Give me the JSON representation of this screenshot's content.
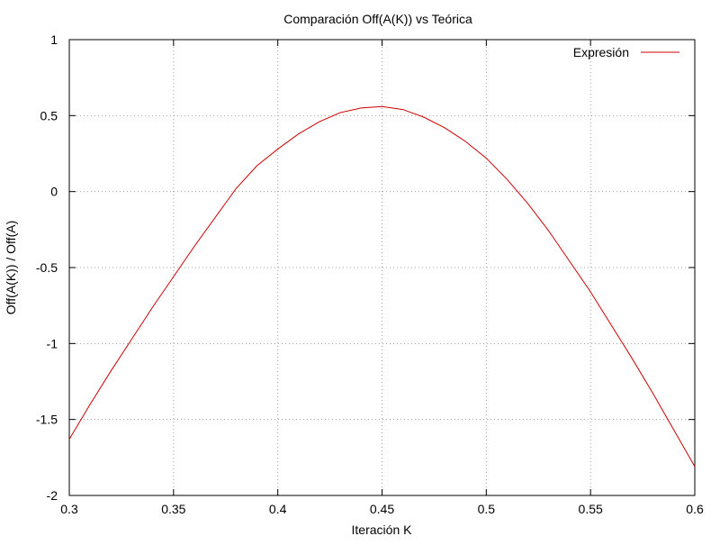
{
  "chart_data": {
    "type": "line",
    "title": "Comparación Off(A(K)) vs Teórica",
    "xlabel": "Iteración K",
    "ylabel": "Off(A(K)) / Off(A)",
    "xlim": [
      0.3,
      0.6
    ],
    "ylim": [
      -2,
      1
    ],
    "x_ticks": [
      0.3,
      0.35,
      0.4,
      0.45,
      0.5,
      0.55,
      0.6
    ],
    "x_tick_labels": [
      "0.3",
      "0.35",
      "0.4",
      "0.45",
      "0.5",
      "0.55",
      "0.6"
    ],
    "y_ticks": [
      -2,
      -1.5,
      -1,
      -0.5,
      0,
      0.5,
      1
    ],
    "y_tick_labels": [
      "-2",
      "-1.5",
      "-1",
      "-0.5",
      "0",
      "0.5",
      "1"
    ],
    "grid": true,
    "legend_position": "top-right",
    "series": [
      {
        "name": "Expresión",
        "color": "#cc0000",
        "x": [
          0.3,
          0.31,
          0.32,
          0.33,
          0.34,
          0.35,
          0.36,
          0.37,
          0.38,
          0.39,
          0.4,
          0.41,
          0.42,
          0.43,
          0.44,
          0.45,
          0.46,
          0.47,
          0.48,
          0.49,
          0.5,
          0.51,
          0.52,
          0.53,
          0.54,
          0.55,
          0.56,
          0.57,
          0.58,
          0.59,
          0.6
        ],
        "y": [
          -1.63,
          -1.4,
          -1.18,
          -0.97,
          -0.76,
          -0.56,
          -0.36,
          -0.17,
          0.02,
          0.17,
          0.28,
          0.38,
          0.46,
          0.52,
          0.55,
          0.56,
          0.54,
          0.49,
          0.42,
          0.33,
          0.22,
          0.08,
          -0.08,
          -0.26,
          -0.46,
          -0.66,
          -0.88,
          -1.1,
          -1.33,
          -1.57,
          -1.81
        ]
      }
    ]
  }
}
